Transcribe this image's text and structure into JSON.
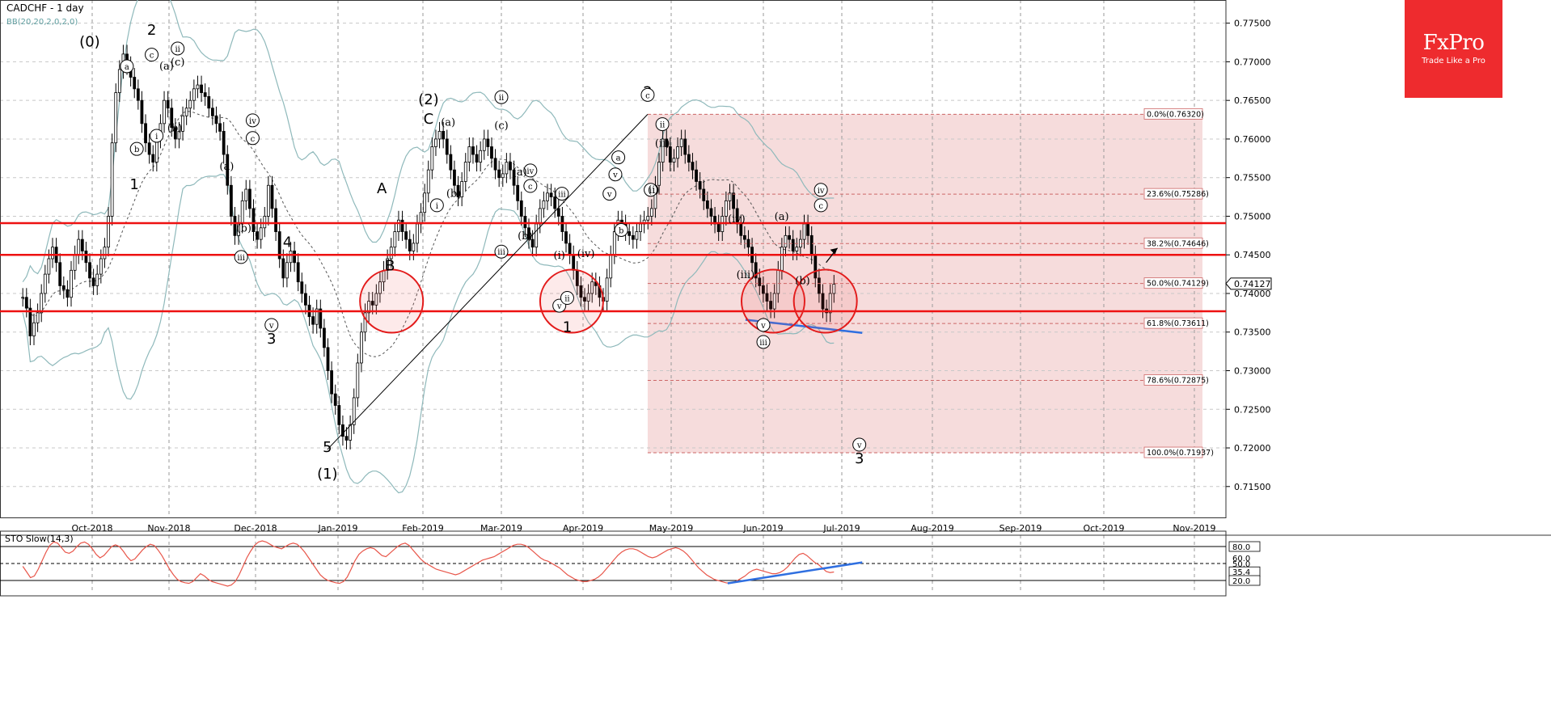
{
  "header": {
    "symbol_label": "CADCHF - 1 day",
    "indicator_label": "BB(20,20,2,0,2,0)"
  },
  "brand": {
    "logo": "FxPro",
    "tagline": "Trade Like a Pro"
  },
  "current_price": "0.74127",
  "colors": {
    "bull": "#ffffff",
    "bear": "#000000",
    "bands": "#8fb9bb",
    "midline": "#555555",
    "horizontal_levels": "#ee1111",
    "fib_zone": "#f6dcdc",
    "fib_lines": "#cc6666",
    "trendline_blue": "#2f6fe0",
    "stoch": "#e8564a",
    "brand": "#ee2b2e"
  },
  "chart_data": [
    {
      "type": "candlestick",
      "title": "CADCHF - 1 day",
      "ylim": [
        0.711,
        0.778
      ],
      "y_ticks": [
        "0.71500",
        "0.72000",
        "0.72500",
        "0.73000",
        "0.73500",
        "0.74000",
        "0.74500",
        "0.75000",
        "0.75500",
        "0.76000",
        "0.76500",
        "0.77000",
        "0.77500"
      ],
      "x_ticks": [
        "Oct-2018",
        "Nov-2018",
        "Dec-2018",
        "Jan-2019",
        "Feb-2019",
        "Mar-2019",
        "Apr-2019",
        "May-2019",
        "Jun-2019",
        "Jul-2019",
        "Aug-2019",
        "Sep-2019",
        "Oct-2019",
        "Nov-2019"
      ],
      "grid": true,
      "horizontal_levels": [
        0.7491,
        0.745,
        0.7377
      ],
      "fibonacci": {
        "levels": [
          {
            "label": "0.0%(0.76320)",
            "value": 0.7632
          },
          {
            "label": "23.6%(0.75286)",
            "value": 0.75286
          },
          {
            "label": "38.2%(0.74646)",
            "value": 0.74646
          },
          {
            "label": "50.0%(0.74129)",
            "value": 0.74129
          },
          {
            "label": "61.8%(0.73611)",
            "value": 0.73611
          },
          {
            "label": "78.6%(0.72875)",
            "value": 0.72875
          },
          {
            "label": "100.0%(0.71937)",
            "value": 0.71937
          }
        ]
      },
      "prices": [
        0.7395,
        0.7381,
        0.7345,
        0.7362,
        0.7375,
        0.74,
        0.7425,
        0.7445,
        0.746,
        0.744,
        0.741,
        0.7405,
        0.7395,
        0.743,
        0.745,
        0.747,
        0.7455,
        0.744,
        0.742,
        0.741,
        0.7425,
        0.7445,
        0.746,
        0.75,
        0.7595,
        0.766,
        0.769,
        0.771,
        0.7695,
        0.768,
        0.7665,
        0.765,
        0.762,
        0.7595,
        0.758,
        0.757,
        0.76,
        0.762,
        0.765,
        0.764,
        0.7615,
        0.76,
        0.761,
        0.763,
        0.764,
        0.765,
        0.7665,
        0.767,
        0.766,
        0.7655,
        0.764,
        0.763,
        0.762,
        0.761,
        0.758,
        0.754,
        0.75,
        0.7475,
        0.749,
        0.752,
        0.7535,
        0.751,
        0.748,
        0.747,
        0.7485,
        0.75,
        0.754,
        0.751,
        0.748,
        0.7445,
        0.742,
        0.744,
        0.7455,
        0.744,
        0.7415,
        0.74,
        0.7385,
        0.737,
        0.736,
        0.738,
        0.7355,
        0.733,
        0.73,
        0.727,
        0.7255,
        0.723,
        0.7215,
        0.721,
        0.723,
        0.7265,
        0.731,
        0.735,
        0.7375,
        0.739,
        0.7385,
        0.74,
        0.7415,
        0.743,
        0.7445,
        0.746,
        0.748,
        0.7495,
        0.748,
        0.747,
        0.7455,
        0.7465,
        0.749,
        0.7505,
        0.753,
        0.756,
        0.759,
        0.76,
        0.761,
        0.76,
        0.758,
        0.756,
        0.754,
        0.7525,
        0.7545,
        0.757,
        0.759,
        0.758,
        0.757,
        0.7585,
        0.76,
        0.759,
        0.7575,
        0.756,
        0.755,
        0.7555,
        0.757,
        0.756,
        0.754,
        0.752,
        0.75,
        0.7485,
        0.747,
        0.746,
        0.749,
        0.751,
        0.752,
        0.753,
        0.7525,
        0.751,
        0.75,
        0.748,
        0.7465,
        0.745,
        0.743,
        0.741,
        0.7395,
        0.739,
        0.74,
        0.7415,
        0.741,
        0.7395,
        0.739,
        0.742,
        0.745,
        0.748,
        0.7495,
        0.749,
        0.748,
        0.7475,
        0.747,
        0.748,
        0.749,
        0.7495,
        0.75,
        0.751,
        0.754,
        0.757,
        0.76,
        0.759,
        0.757,
        0.7575,
        0.759,
        0.76,
        0.758,
        0.757,
        0.756,
        0.7545,
        0.7535,
        0.752,
        0.751,
        0.75,
        0.749,
        0.748,
        0.75,
        0.752,
        0.753,
        0.751,
        0.749,
        0.7475,
        0.747,
        0.746,
        0.744,
        0.742,
        0.741,
        0.74,
        0.739,
        0.738,
        0.74,
        0.743,
        0.746,
        0.7475,
        0.747,
        0.7455,
        0.746,
        0.747,
        0.749,
        0.7475,
        0.745,
        0.742,
        0.74,
        0.738,
        0.7375,
        0.74,
        0.7412
      ],
      "wave_labels": [
        {
          "text": "(0)",
          "x_date": "2018-09-30",
          "y": 0.772,
          "circled": false
        },
        {
          "text": "1",
          "x_date": "2018-10-18",
          "y": 0.7535,
          "circled": false
        },
        {
          "text": "2",
          "x_date": "2018-10-25",
          "y": 0.7735,
          "circled": false
        },
        {
          "text": "3",
          "x_date": "2018-12-07",
          "y": 0.7335,
          "circled": false
        },
        {
          "text": "4",
          "x_date": "2018-12-13",
          "y": 0.746,
          "circled": false
        },
        {
          "text": "5",
          "x_date": "2018-12-28",
          "y": 0.7195,
          "circled": false
        },
        {
          "text": "(1)",
          "x_date": "2018-12-28",
          "y": 0.716,
          "circled": false
        },
        {
          "text": "A",
          "x_date": "2019-01-17",
          "y": 0.753,
          "circled": false
        },
        {
          "text": "B",
          "x_date": "2019-01-20",
          "y": 0.743,
          "circled": false
        },
        {
          "text": "(2)",
          "x_date": "2019-02-03",
          "y": 0.7645,
          "circled": false
        },
        {
          "text": "C",
          "x_date": "2019-02-03",
          "y": 0.762,
          "circled": false
        },
        {
          "text": "1",
          "x_date": "2019-03-26",
          "y": 0.735,
          "circled": false
        },
        {
          "text": "2",
          "x_date": "2019-04-23",
          "y": 0.7655,
          "circled": false
        },
        {
          "text": "3",
          "x_date": "2019-07-07",
          "y": 0.718,
          "circled": false
        },
        {
          "text": "a",
          "x_date": "2018-10-15",
          "y": 0.769,
          "circled": true
        },
        {
          "text": "b",
          "x_date": "2018-10-19",
          "y": 0.7583,
          "circled": true
        },
        {
          "text": "c",
          "x_date": "2018-10-25",
          "y": 0.7705,
          "circled": true
        },
        {
          "text": "i",
          "x_date": "2018-10-27",
          "y": 0.76,
          "circled": true
        },
        {
          "text": "ii",
          "x_date": "2018-11-04",
          "y": 0.7713,
          "circled": true
        },
        {
          "text": "iv",
          "x_date": "2018-11-30",
          "y": 0.762,
          "circled": true
        },
        {
          "text": "c",
          "x_date": "2018-11-30",
          "y": 0.7597,
          "circled": true
        },
        {
          "text": "v",
          "x_date": "2018-12-07",
          "y": 0.7355,
          "circled": true
        },
        {
          "text": "i",
          "x_date": "2019-02-06",
          "y": 0.751,
          "circled": true
        },
        {
          "text": "ii",
          "x_date": "2019-03-01",
          "y": 0.765,
          "circled": true
        },
        {
          "text": "iv",
          "x_date": "2019-03-12",
          "y": 0.7555,
          "circled": true
        },
        {
          "text": "c",
          "x_date": "2019-03-12",
          "y": 0.7535,
          "circled": true
        },
        {
          "text": "iii",
          "x_date": "2019-03-24",
          "y": 0.7525,
          "circled": true
        },
        {
          "text": "v",
          "x_date": "2019-03-23",
          "y": 0.738,
          "circled": true
        },
        {
          "text": "ii",
          "x_date": "2019-03-26",
          "y": 0.739,
          "circled": true
        },
        {
          "text": "v",
          "x_date": "2019-04-10",
          "y": 0.7525,
          "circled": true
        },
        {
          "text": "c",
          "x_date": "2019-04-23",
          "y": 0.7653,
          "circled": true
        },
        {
          "text": "ii",
          "x_date": "2019-04-28",
          "y": 0.7615,
          "circled": true
        },
        {
          "text": "i",
          "x_date": "2019-04-24",
          "y": 0.753,
          "circled": true
        },
        {
          "text": "iii",
          "x_date": "2019-06-01",
          "y": 0.7333,
          "circled": true
        },
        {
          "text": "v",
          "x_date": "2019-06-01",
          "y": 0.7355,
          "circled": true
        },
        {
          "text": "iv",
          "x_date": "2019-06-23",
          "y": 0.753,
          "circled": true
        },
        {
          "text": "c",
          "x_date": "2019-06-23",
          "y": 0.751,
          "circled": true
        },
        {
          "text": "v",
          "x_date": "2019-07-07",
          "y": 0.72,
          "circled": true
        }
      ],
      "wave_text_labels": [
        {
          "text": "(a)",
          "x_date": "2018-10-31",
          "y": 0.769
        },
        {
          "text": "(c)",
          "x_date": "2018-11-04",
          "y": 0.7695
        },
        {
          "text": "(b)",
          "x_date": "2018-11-03",
          "y": 0.761
        },
        {
          "text": "(a)",
          "x_date": "2018-11-21",
          "y": 0.756
        },
        {
          "text": "(b)",
          "x_date": "2018-11-27",
          "y": 0.748
        },
        {
          "text": "(a)",
          "x_date": "2019-02-10",
          "y": 0.7617
        },
        {
          "text": "(b)",
          "x_date": "2019-02-12",
          "y": 0.7525
        },
        {
          "text": "(c)",
          "x_date": "2019-03-01",
          "y": 0.7613
        },
        {
          "text": "(a)",
          "x_date": "2019-03-08",
          "y": 0.7553
        },
        {
          "text": "(b)",
          "x_date": "2019-03-10",
          "y": 0.747
        },
        {
          "text": "(i)",
          "x_date": "2019-03-23",
          "y": 0.7445
        },
        {
          "text": "(iv)",
          "x_date": "2019-04-02",
          "y": 0.7447
        },
        {
          "text": "(i)",
          "x_date": "2019-04-25",
          "y": 0.753
        },
        {
          "text": "(ii)",
          "x_date": "2019-04-28",
          "y": 0.759
        },
        {
          "text": "(iv)",
          "x_date": "2019-05-23",
          "y": 0.7492
        },
        {
          "text": "(iii)",
          "x_date": "2019-05-26",
          "y": 0.742
        },
        {
          "text": "(a)",
          "x_date": "2019-06-08",
          "y": 0.7495
        },
        {
          "text": "(b)",
          "x_date": "2019-06-16",
          "y": 0.7412
        }
      ],
      "extra_circled_labels": [
        {
          "text": "iii",
          "x_date": "2018-11-26",
          "y": 0.7443
        },
        {
          "text": "iii",
          "x_date": "2019-03-01",
          "y": 0.745
        },
        {
          "text": "b",
          "x_date": "2019-04-14",
          "y": 0.7478
        },
        {
          "text": "v",
          "x_date": "2019-04-12",
          "y": 0.755
        },
        {
          "text": "a",
          "x_date": "2019-04-13",
          "y": 0.7572
        }
      ],
      "highlight_circles": [
        "2019-01-17",
        "2019-03-24",
        "2019-06-01",
        "2019-06-21"
      ]
    },
    {
      "type": "line",
      "title": "STO Slow(14,3)",
      "ylim": [
        0,
        100
      ],
      "y_ticks": [
        "80.0",
        "60.0",
        "50.0",
        "35.4",
        "20.0"
      ],
      "levels": [
        80,
        50,
        20
      ],
      "values": [
        45,
        35,
        25,
        28,
        40,
        55,
        70,
        82,
        88,
        86,
        78,
        70,
        68,
        72,
        80,
        86,
        88,
        84,
        76,
        66,
        60,
        64,
        72,
        80,
        83,
        80,
        72,
        62,
        55,
        58,
        66,
        74,
        80,
        84,
        82,
        74,
        64,
        52,
        40,
        30,
        22,
        18,
        16,
        15,
        18,
        25,
        32,
        28,
        22,
        18,
        16,
        14,
        12,
        10,
        12,
        18,
        30,
        45,
        60,
        72,
        82,
        88,
        90,
        88,
        84,
        80,
        78,
        76,
        80,
        84,
        86,
        84,
        78,
        70,
        60,
        50,
        40,
        30,
        24,
        20,
        18,
        16,
        15,
        18,
        26,
        40,
        55,
        66,
        72,
        76,
        78,
        76,
        70,
        64,
        62,
        68,
        74,
        80,
        84,
        86,
        82,
        74,
        66,
        58,
        52,
        48,
        44,
        40,
        38,
        36,
        34,
        32,
        30,
        32,
        36,
        40,
        44,
        48,
        52,
        56,
        58,
        60,
        62,
        66,
        70,
        74,
        78,
        82,
        84,
        84,
        82,
        78,
        72,
        66,
        60,
        56,
        54,
        50,
        46,
        42,
        36,
        30,
        26,
        22,
        20,
        18,
        18,
        20,
        22,
        26,
        32,
        40,
        48,
        56,
        64,
        70,
        74,
        76,
        76,
        74,
        70,
        66,
        62,
        60,
        62,
        66,
        70,
        74,
        76,
        78,
        76,
        72,
        66,
        58,
        50,
        42,
        36,
        30,
        26,
        22,
        20,
        18,
        16,
        15,
        16,
        20,
        24,
        28,
        34,
        38,
        40,
        38,
        36,
        34,
        32,
        32,
        34,
        38,
        44,
        52,
        60,
        66,
        68,
        64,
        58,
        52,
        48,
        42,
        36,
        34,
        35
      ]
    }
  ],
  "sto_label": "STO Slow(14,3)"
}
